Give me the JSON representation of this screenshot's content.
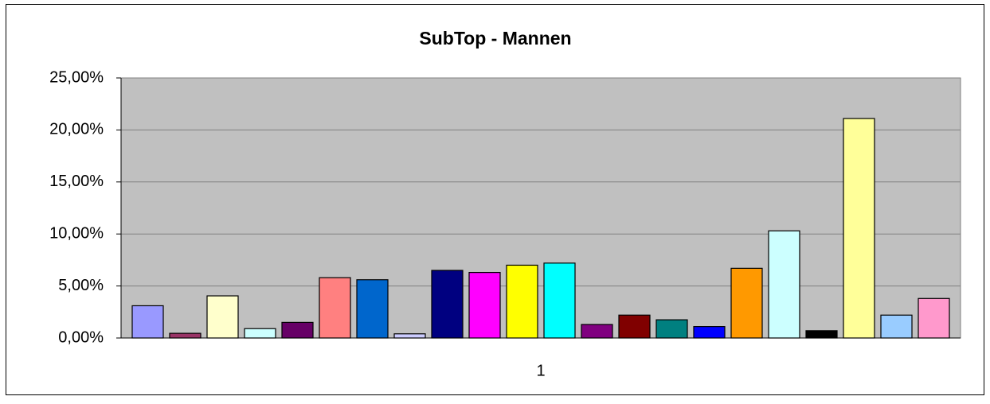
{
  "chart_data": {
    "type": "bar",
    "title": "SubTop - Mannen",
    "categories": [
      "1"
    ],
    "series": [
      {
        "color": "#9999ff",
        "values": [
          3.1
        ]
      },
      {
        "color": "#993366",
        "values": [
          0.45
        ]
      },
      {
        "color": "#ffffcc",
        "values": [
          4.05
        ]
      },
      {
        "color": "#ccffff",
        "values": [
          0.9
        ]
      },
      {
        "color": "#660066",
        "values": [
          1.5
        ]
      },
      {
        "color": "#ff8080",
        "values": [
          5.8
        ]
      },
      {
        "color": "#0066cc",
        "values": [
          5.6
        ]
      },
      {
        "color": "#ccccff",
        "values": [
          0.4
        ]
      },
      {
        "color": "#000080",
        "values": [
          6.5
        ]
      },
      {
        "color": "#ff00ff",
        "values": [
          6.3
        ]
      },
      {
        "color": "#ffff00",
        "values": [
          7.0
        ]
      },
      {
        "color": "#00ffff",
        "values": [
          7.2
        ]
      },
      {
        "color": "#800080",
        "values": [
          1.3
        ]
      },
      {
        "color": "#800000",
        "values": [
          2.2
        ]
      },
      {
        "color": "#008080",
        "values": [
          1.75
        ]
      },
      {
        "color": "#0000ff",
        "values": [
          1.1
        ]
      },
      {
        "color": "#ff9900",
        "values": [
          6.7
        ]
      },
      {
        "color": "#ccffff",
        "values": [
          10.3
        ]
      },
      {
        "color": "#000000",
        "values": [
          0.7
        ]
      },
      {
        "color": "#ffff99",
        "values": [
          21.1
        ]
      },
      {
        "color": "#99ccff",
        "values": [
          2.2
        ]
      },
      {
        "color": "#ff99cc",
        "values": [
          3.8
        ]
      }
    ],
    "ylim": [
      0,
      25
    ],
    "yticks": [
      {
        "value": 0,
        "label": "0,00%"
      },
      {
        "value": 5,
        "label": "5,00%"
      },
      {
        "value": 10,
        "label": "10,00%"
      },
      {
        "value": 15,
        "label": "15,00%"
      },
      {
        "value": 20,
        "label": "20,00%"
      },
      {
        "value": 25,
        "label": "25,00%"
      }
    ],
    "grid": true,
    "plot_color": "#c0c0c0"
  }
}
